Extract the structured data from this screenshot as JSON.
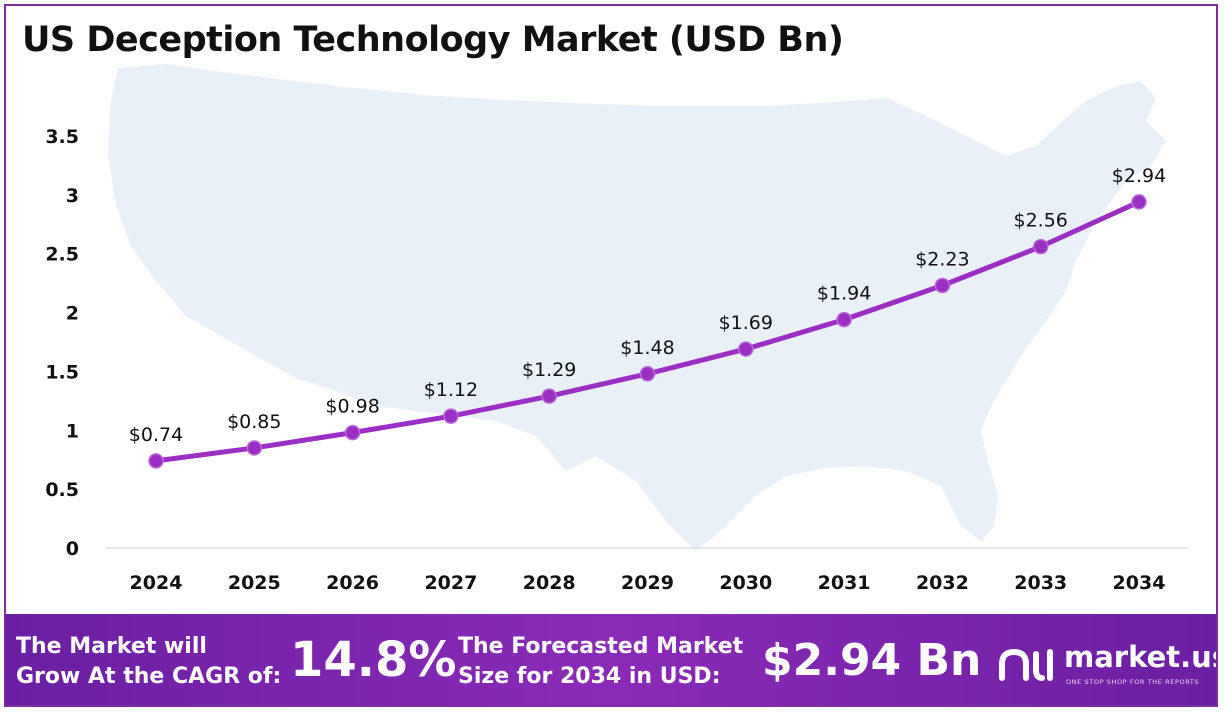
{
  "title": "US Deception Technology Market (USD Bn)",
  "chart_data": {
    "type": "line",
    "title": "US Deception Technology Market (USD Bn)",
    "xlabel": "",
    "ylabel": "",
    "categories": [
      "2024",
      "2025",
      "2026",
      "2027",
      "2028",
      "2029",
      "2030",
      "2031",
      "2032",
      "2033",
      "2034"
    ],
    "series": [
      {
        "values": [
          0.74,
          0.85,
          0.98,
          1.12,
          1.29,
          1.48,
          1.69,
          1.94,
          2.23,
          2.56,
          2.94
        ]
      }
    ],
    "data_labels": [
      "$0.74",
      "$0.85",
      "$0.98",
      "$1.12",
      "$1.29",
      "$1.48",
      "$1.69",
      "$1.94",
      "$2.23",
      "$2.56",
      "$2.94"
    ],
    "ylim": [
      0,
      3.5
    ],
    "yticks": [
      "0",
      "0.5",
      "1",
      "1.5",
      "2",
      "2.5",
      "3",
      "3.5"
    ],
    "grid": false,
    "line_color": "#9b2fc4",
    "background_image": "us-map-silhouette"
  },
  "footer": {
    "cagr_label": "The Market will\nGrow At the CAGR of:",
    "cagr_value": "14.8%",
    "forecast_label": "The Forecasted Market\nSize for 2034 in USD:",
    "forecast_value": "$2.94 Bn",
    "brand_name": "market.us",
    "brand_tagline": "ONE STOP SHOP FOR THE REPORTS",
    "background_color": "#7a26ab"
  }
}
